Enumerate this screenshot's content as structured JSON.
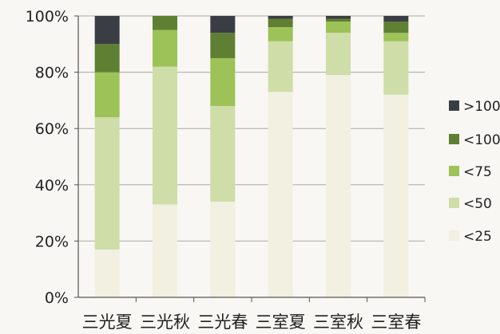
{
  "chart_data": {
    "type": "bar",
    "stacked": true,
    "percent": true,
    "categories": [
      "三光夏",
      "三光秋",
      "三光春",
      "三室夏",
      "三室秋",
      "三室春"
    ],
    "series": [
      {
        "name": "<25",
        "color": "#f1f0e1",
        "values": [
          17,
          33,
          34,
          73,
          79,
          72
        ]
      },
      {
        "name": "<50",
        "color": "#cfdda8",
        "values": [
          47,
          49,
          34,
          18,
          15,
          19
        ]
      },
      {
        "name": "<75",
        "color": "#9dc257",
        "values": [
          16,
          13,
          17,
          5,
          4,
          3
        ]
      },
      {
        "name": "<100",
        "color": "#5f7f33",
        "values": [
          10,
          5,
          9,
          3,
          1,
          4
        ]
      },
      {
        "name": ">100",
        "color": "#3a3e44",
        "values": [
          10,
          0,
          6,
          1,
          1,
          2
        ]
      }
    ],
    "y_ticks": [
      "0%",
      "20%",
      "40%",
      "60%",
      "80%",
      "100%"
    ],
    "ylim": [
      0,
      100
    ],
    "grid": true,
    "legend_position": "right",
    "legend_order": [
      ">100",
      "<100",
      "<75",
      "<50",
      "<25"
    ]
  }
}
